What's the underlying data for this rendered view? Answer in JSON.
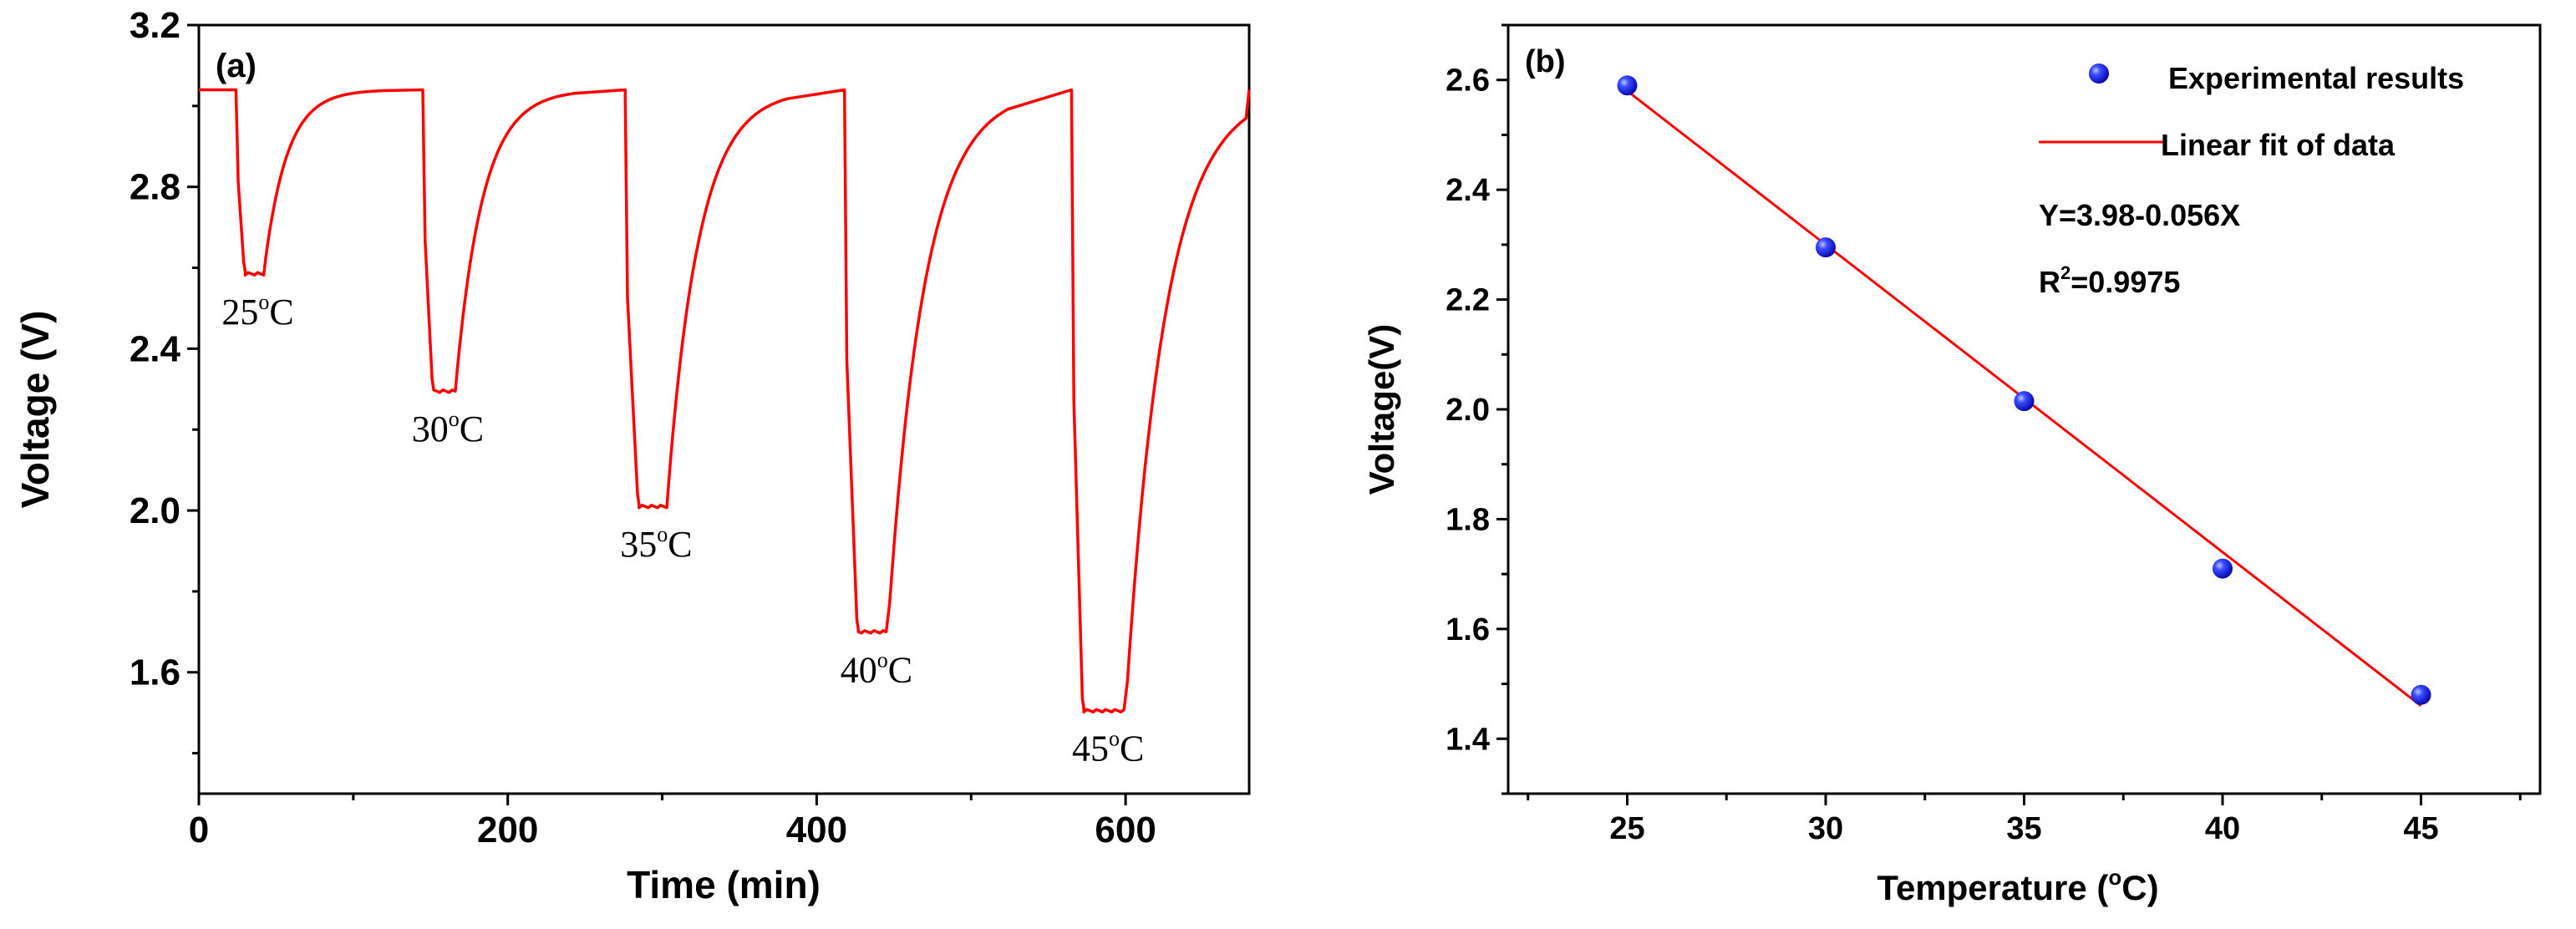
{
  "colors": {
    "line": "#ff0000",
    "marker": "#1a1aff",
    "axis": "#000000"
  },
  "chart_data": [
    {
      "panel": "(a)",
      "type": "line",
      "title": "",
      "xlabel": "Time (min)",
      "ylabel": "Voltage (V)",
      "xlim": [
        0,
        680
      ],
      "ylim": [
        1.3,
        3.2
      ],
      "xticks": [
        0,
        200,
        400,
        600
      ],
      "xtick_labels": [
        "0",
        "200",
        "400",
        "600"
      ],
      "yticks": [
        1.6,
        2.0,
        2.4,
        2.8,
        3.2
      ],
      "ytick_labels": [
        "1.6",
        "2.0",
        "2.4",
        "2.8",
        "3.2"
      ],
      "baseline": 3.04,
      "dips": [
        {
          "start": 24,
          "bottom_start": 30,
          "bottom_end": 42,
          "min": 2.585,
          "label": "25",
          "unit": "C"
        },
        {
          "start": 145,
          "bottom_start": 152,
          "bottom_end": 166,
          "min": 2.295,
          "label": "30",
          "unit": "C"
        },
        {
          "start": 276,
          "bottom_start": 285,
          "bottom_end": 303,
          "min": 2.01,
          "label": "35",
          "unit": "C"
        },
        {
          "start": 418,
          "bottom_start": 427,
          "bottom_end": 446,
          "min": 1.7,
          "label": "40",
          "unit": "C"
        },
        {
          "start": 565,
          "bottom_start": 573,
          "bottom_end": 600,
          "min": 1.505,
          "label": "45",
          "unit": "C"
        }
      ],
      "degree_symbol": "o"
    },
    {
      "panel": "(b)",
      "type": "scatter",
      "title": "",
      "xlabel": "Temperature (",
      "xlabel_suffix": "C)",
      "ylabel": "Voltage(V)",
      "xlim": [
        22,
        48
      ],
      "ylim": [
        1.3,
        2.7
      ],
      "xticks": [
        25,
        30,
        35,
        40,
        45
      ],
      "xtick_labels": [
        "25",
        "30",
        "35",
        "40",
        "45"
      ],
      "yticks": [
        1.4,
        1.6,
        1.8,
        2.0,
        2.2,
        2.4,
        2.6
      ],
      "ytick_labels": [
        "1.4",
        "1.6",
        "1.8",
        "2.0",
        "2.2",
        "2.4",
        "2.6"
      ],
      "points": [
        {
          "x": 25,
          "y": 2.59
        },
        {
          "x": 30,
          "y": 2.295
        },
        {
          "x": 35,
          "y": 2.015
        },
        {
          "x": 40,
          "y": 1.71
        },
        {
          "x": 45,
          "y": 1.48
        }
      ],
      "fit": {
        "intercept": 3.98,
        "slope": -0.056,
        "x_range": [
          25,
          45
        ]
      },
      "legend": [
        "Experimental results",
        "Linear fit of data"
      ],
      "equation": "Y=3.98-0.056X",
      "r2_prefix": "R",
      "r2_sup": "2",
      "r2_value": "=0.9975"
    }
  ]
}
